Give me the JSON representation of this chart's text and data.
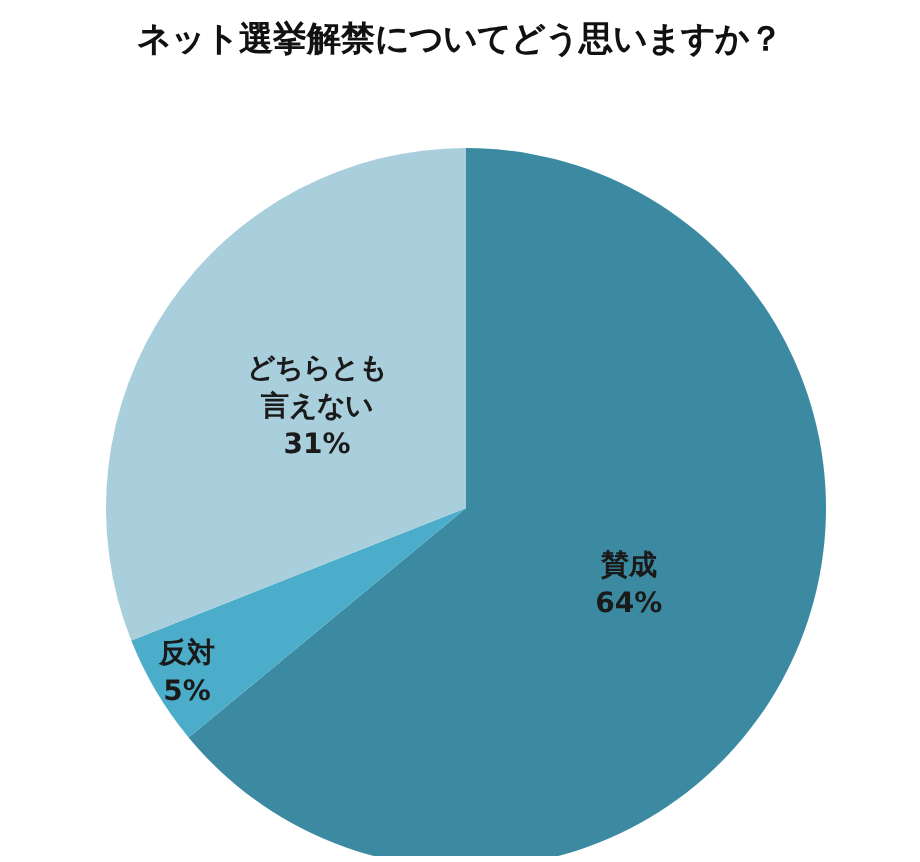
{
  "chart_data": {
    "type": "pie",
    "title": "ネット選挙解禁についてどう思いますか？",
    "categories": [
      "賛成",
      "反対",
      "どちらとも言えない"
    ],
    "values": [
      64,
      5,
      31
    ],
    "value_labels": [
      "64%",
      "5%",
      "31%"
    ],
    "colors": [
      "#3b8aa1",
      "#4badc9",
      "#a9cfdd"
    ],
    "legend": false
  }
}
